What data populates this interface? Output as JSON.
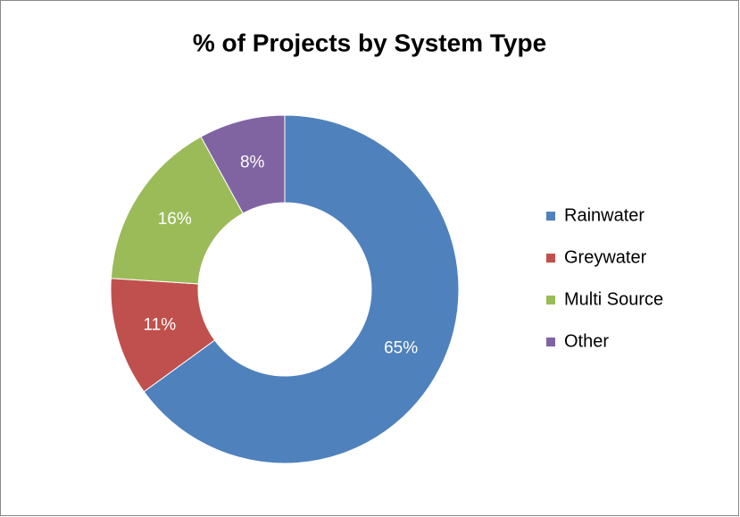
{
  "chart_data": {
    "type": "donut",
    "title": "% of Projects by System Type",
    "categories": [
      "Rainwater",
      "Greywater",
      "Multi Source",
      "Other"
    ],
    "values": [
      65,
      11,
      16,
      8
    ],
    "value_labels": [
      "65%",
      "11%",
      "16%",
      "8%"
    ],
    "colors": [
      "#4f81bd",
      "#c0504d",
      "#9bbb59",
      "#8064a2"
    ],
    "legend": "right"
  }
}
